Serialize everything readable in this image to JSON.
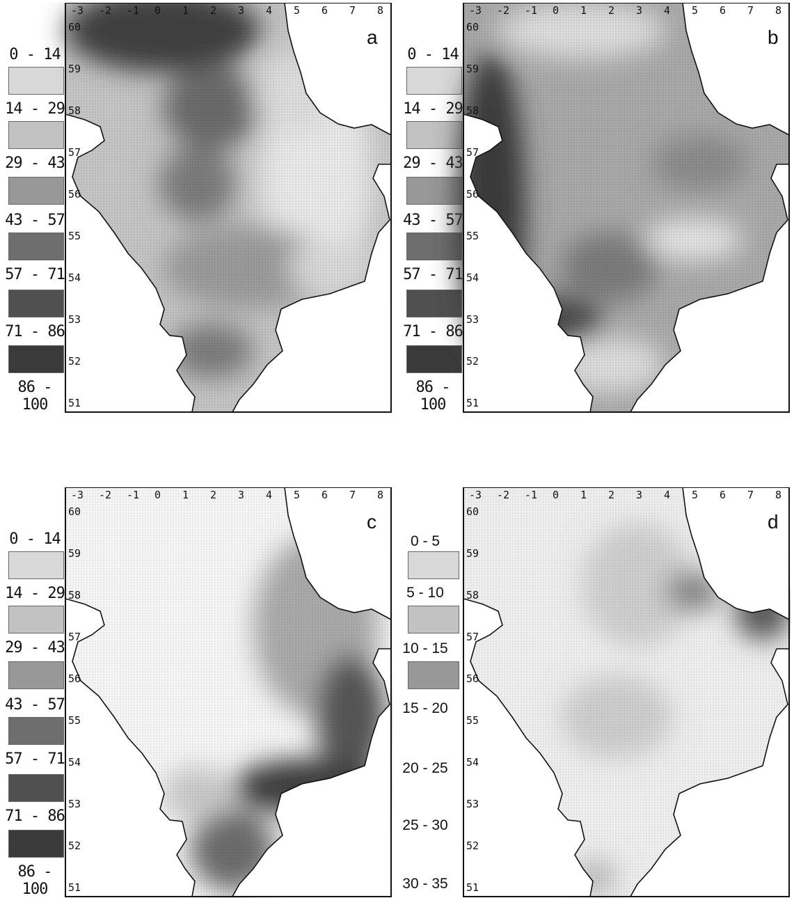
{
  "panels": [
    {
      "letter": "a",
      "legend": [
        "0 - 14",
        "14 - 29",
        "29 - 43",
        "43 - 57",
        "57 - 71",
        "71 - 86",
        "86 - 100"
      ]
    },
    {
      "letter": "b",
      "legend": [
        "0 - 14",
        "14 - 29",
        "29 - 43",
        "43 - 57",
        "57 - 71",
        "71 - 86",
        "86 - 100"
      ]
    },
    {
      "letter": "c",
      "legend": [
        "0 - 14",
        "14 - 29",
        "29 - 43",
        "43 - 57",
        "57 - 71",
        "71 - 86",
        "86 - 100"
      ]
    },
    {
      "letter": "d",
      "legend": [
        "0 - 5",
        "5 - 10",
        "10 - 15",
        "15 - 20",
        "20 - 25",
        "25 - 30",
        "30 - 35"
      ]
    }
  ],
  "longitude_ticks": [
    "-3",
    "-2",
    "-1",
    "0",
    "1",
    "2",
    "3",
    "4",
    "5",
    "6",
    "7",
    "8"
  ],
  "latitude_ticks": [
    "60",
    "59",
    "58",
    "57",
    "56",
    "55",
    "54",
    "53",
    "52",
    "51"
  ],
  "shade_colors": [
    "#e6e6e6",
    "#cfcfcf",
    "#b3b3b3",
    "#959595",
    "#737373",
    "#545454",
    "#3a3a3a"
  ],
  "colors": {
    "land": "#ffffff",
    "sea_base": "#b8b8b8",
    "coast": "#111111"
  }
}
